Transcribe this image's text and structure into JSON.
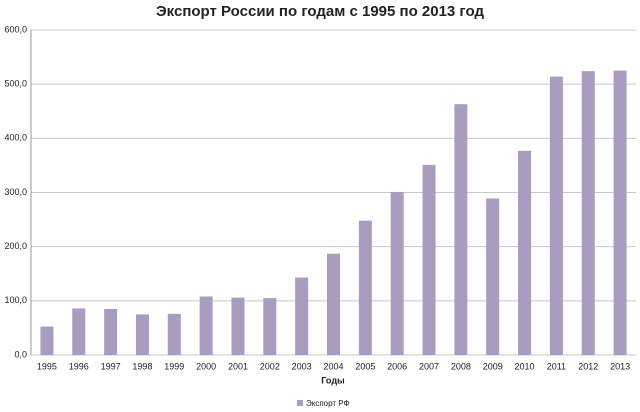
{
  "chart_data": {
    "type": "bar",
    "title": "Экспорт России по годам с 1995 по 2013 год",
    "x_label": "Годы",
    "categories": [
      "1995",
      "1996",
      "1997",
      "1998",
      "1999",
      "2000",
      "2001",
      "2002",
      "2003",
      "2004",
      "2005",
      "2006",
      "2007",
      "2008",
      "2009",
      "2010",
      "2011",
      "2012",
      "2013"
    ],
    "series": [
      {
        "name": "Экспорт РФ",
        "color": "#a89cc0",
        "values": [
          52.5,
          86,
          85,
          75,
          76,
          108,
          106,
          105,
          143,
          187,
          248,
          301,
          351,
          463,
          289,
          377,
          514,
          524,
          525
        ]
      }
    ],
    "ylim": [
      0,
      600
    ],
    "yticks": [
      {
        "value": 0,
        "label": "0,0"
      },
      {
        "value": 100,
        "label": "100,0"
      },
      {
        "value": 200,
        "label": "200,0"
      },
      {
        "value": 300,
        "label": "300,0"
      },
      {
        "value": 400,
        "label": "400,0"
      },
      {
        "value": 500,
        "label": "500,0"
      },
      {
        "value": 600,
        "label": "600,0"
      }
    ],
    "grid": true,
    "legend": "bottom"
  }
}
